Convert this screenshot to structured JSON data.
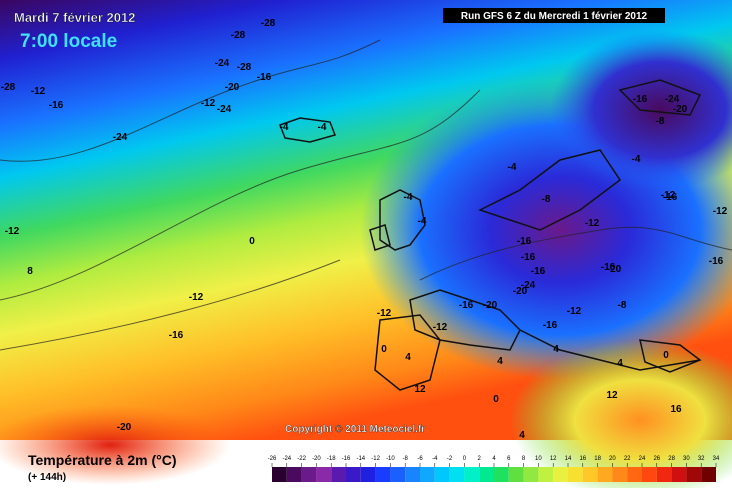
{
  "header": {
    "date": "Mardi 7 février 2012",
    "time": "7:00 locale",
    "run": "Run GFS 6 Z du Mercredi 1 février 2012"
  },
  "copyright": "Copyright © 2011 Meteociel.fr",
  "footer": {
    "title": "Température à 2m (°C)",
    "lead": "(+ 144h)"
  },
  "legend": {
    "ticks": [
      -26,
      -24,
      -22,
      -20,
      -18,
      -16,
      -14,
      -12,
      -10,
      -8,
      -6,
      -4,
      -2,
      0,
      2,
      4,
      6,
      8,
      10,
      12,
      14,
      16,
      18,
      20,
      22,
      24,
      26,
      28,
      30,
      32,
      34
    ],
    "colors": [
      "#2a0030",
      "#4a0a5e",
      "#6a1a8a",
      "#8a2aa8",
      "#5a1ab0",
      "#3a1ac8",
      "#2020e0",
      "#1a3cff",
      "#1a60ff",
      "#1a84ff",
      "#10a8ff",
      "#00c8ff",
      "#00e0f0",
      "#00f0c8",
      "#00e890",
      "#20e060",
      "#60e040",
      "#90e840",
      "#c0f040",
      "#e8f040",
      "#f8e030",
      "#ffc828",
      "#ffa820",
      "#ff8818",
      "#ff6810",
      "#ff4810",
      "#f02810",
      "#d01010",
      "#a00808",
      "#700000"
    ]
  },
  "map": {
    "labels": [
      "-28",
      "-28",
      "-24",
      "-28",
      "-16",
      "-20",
      "-12",
      "-24",
      "-28",
      "-12",
      "-16",
      "-24",
      "-4",
      "-4",
      "-12",
      "8",
      "0",
      "-12",
      "-16",
      "-20",
      "-4",
      "-4",
      "-4",
      "-8",
      "-12",
      "-16",
      "-16",
      "-16",
      "-16",
      "-20",
      "-16",
      "-20",
      "-20",
      "-24",
      "-12",
      "-8",
      "-16",
      "-12",
      "-12",
      "0",
      "4",
      "4",
      "4",
      "0",
      "-12",
      "-16",
      "-24",
      "-20",
      "-8",
      "-4",
      "-16",
      "-12",
      "-16",
      "12",
      "12",
      "16",
      "4",
      "0",
      "4"
    ]
  }
}
